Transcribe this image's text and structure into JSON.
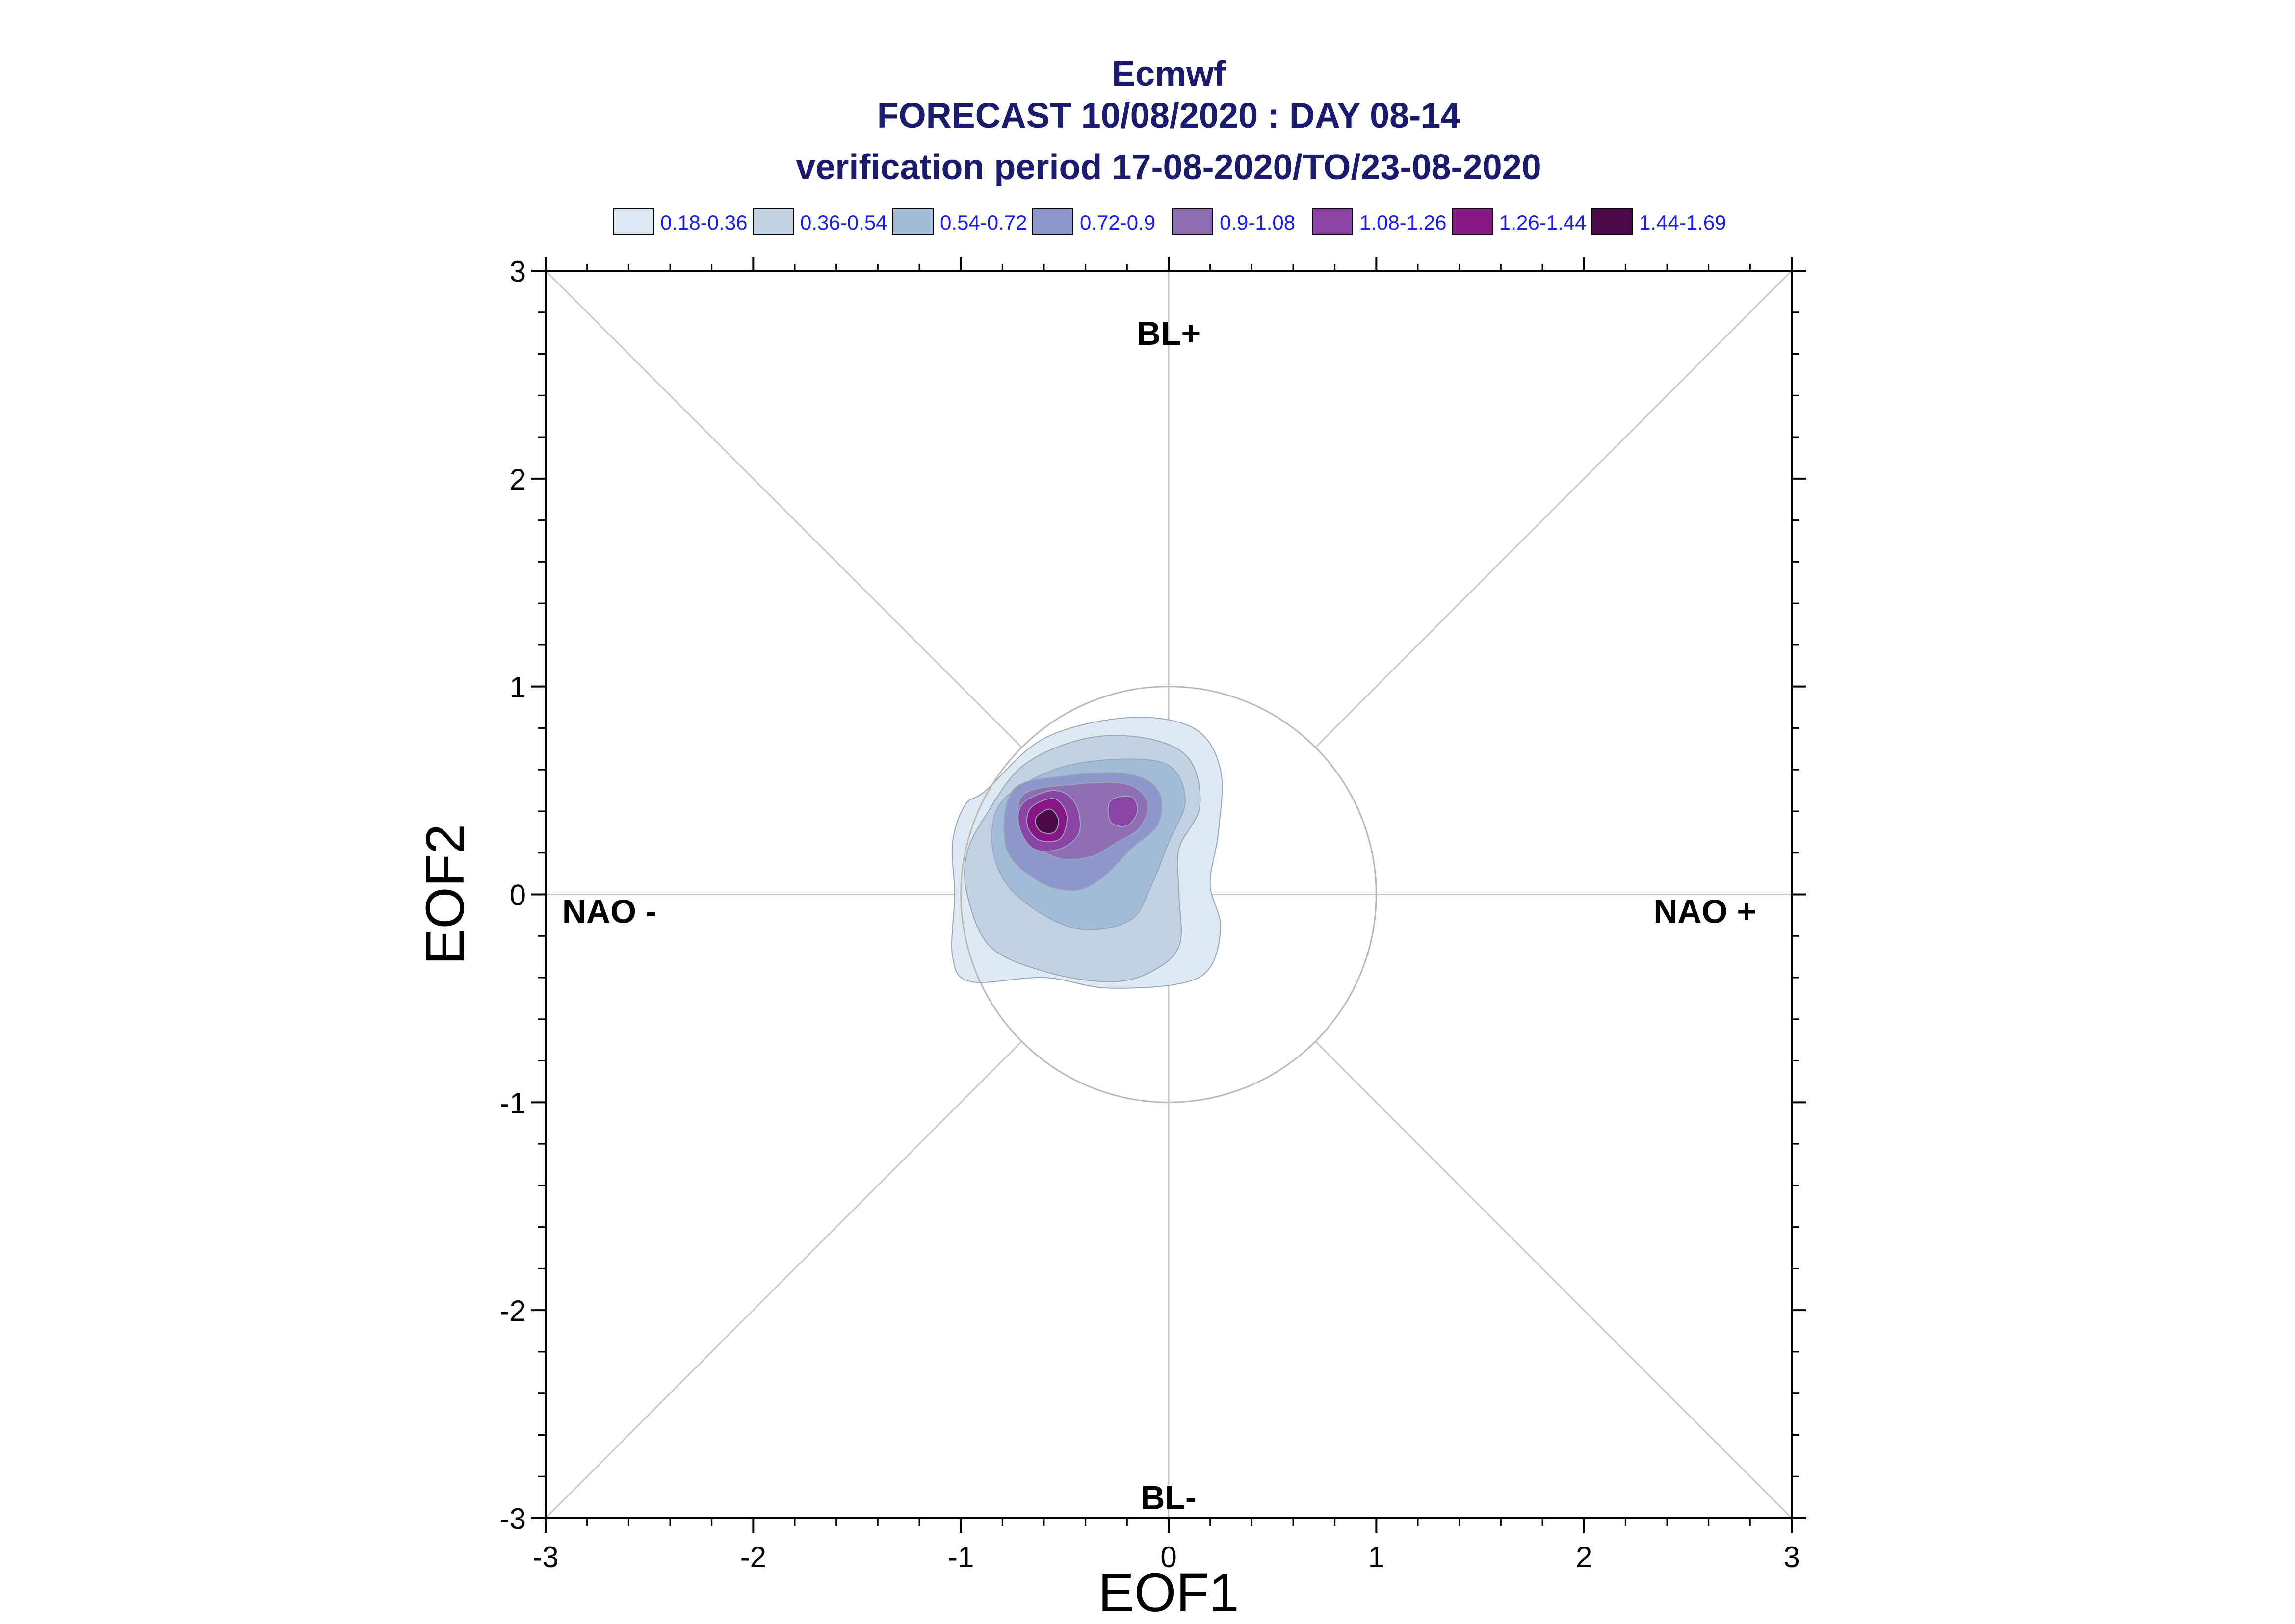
{
  "chart_data": {
    "type": "contour",
    "title_lines": [
      "Ecmwf",
      "FORECAST 10/08/2020 : DAY 08-14",
      "verification period 17-08-2020/TO/23-08-2020"
    ],
    "xlabel": "EOF1",
    "ylabel": "EOF2",
    "xlim": [
      -3,
      3
    ],
    "ylim": [
      -3,
      3
    ],
    "xticks": [
      "-3",
      "-2",
      "-1",
      "0",
      "1",
      "2",
      "3"
    ],
    "yticks": [
      "-3",
      "-2",
      "-1",
      "0",
      "1",
      "2",
      "3"
    ],
    "reference_circle_radius": 1,
    "diagonal_guides": true,
    "annotations": [
      {
        "text": "BL+",
        "x": 0,
        "y": 2.7
      },
      {
        "text": "BL-",
        "x": 0,
        "y": -2.9
      },
      {
        "text": "NAO -",
        "x": -2.55,
        "y": -0.08
      },
      {
        "text": "NAO +",
        "x": 2.55,
        "y": -0.08
      }
    ],
    "legend": [
      {
        "label": "0.18-0.36",
        "color": "#dfe9f1"
      },
      {
        "label": "0.36-0.54",
        "color": "#c0d2e3"
      },
      {
        "label": "0.54-0.72",
        "color": "#a3bcd9"
      },
      {
        "label": "0.72-0.9",
        "color": "#8c98c9"
      },
      {
        "label": "0.9-1.08",
        "color": "#8f6eb5"
      },
      {
        "label": "1.08-1.26",
        "color": "#8a44a6"
      },
      {
        "label": "1.26-1.44",
        "color": "#861685"
      },
      {
        "label": "1.44-1.69",
        "color": "#4a0a4a"
      }
    ],
    "density_peak": {
      "x": -0.58,
      "y": 0.35,
      "value_range": "1.44-1.69"
    },
    "secondary_peak": {
      "x": -0.22,
      "y": 0.4,
      "value_range": "1.08-1.26"
    },
    "contours": [
      {
        "level": "0.18-0.36",
        "points": [
          [
            -0.88,
            0.5
          ],
          [
            -0.6,
            0.75
          ],
          [
            -0.2,
            0.85
          ],
          [
            0.12,
            0.8
          ],
          [
            0.25,
            0.6
          ],
          [
            0.24,
            0.3
          ],
          [
            0.2,
            0.05
          ],
          [
            0.25,
            -0.15
          ],
          [
            0.2,
            -0.35
          ],
          [
            0.05,
            -0.43
          ],
          [
            -0.3,
            -0.45
          ],
          [
            -0.6,
            -0.4
          ],
          [
            -0.95,
            -0.42
          ],
          [
            -1.04,
            -0.3
          ],
          [
            -1.03,
            0.0
          ],
          [
            -1.04,
            0.25
          ],
          [
            -0.98,
            0.43
          ]
        ]
      },
      {
        "level": "0.36-0.54",
        "points": [
          [
            -0.88,
            0.38
          ],
          [
            -0.7,
            0.62
          ],
          [
            -0.4,
            0.75
          ],
          [
            -0.1,
            0.75
          ],
          [
            0.1,
            0.65
          ],
          [
            0.15,
            0.42
          ],
          [
            0.05,
            0.22
          ],
          [
            0.05,
            0.0
          ],
          [
            0.05,
            -0.25
          ],
          [
            -0.1,
            -0.38
          ],
          [
            -0.3,
            -0.42
          ],
          [
            -0.6,
            -0.37
          ],
          [
            -0.86,
            -0.25
          ],
          [
            -0.97,
            0.0
          ],
          [
            -0.97,
            0.2
          ]
        ]
      },
      {
        "level": "0.54-0.72",
        "points": [
          [
            -0.8,
            0.45
          ],
          [
            -0.55,
            0.6
          ],
          [
            -0.25,
            0.65
          ],
          [
            0.0,
            0.62
          ],
          [
            0.08,
            0.45
          ],
          [
            0.0,
            0.25
          ],
          [
            -0.08,
            0.05
          ],
          [
            -0.18,
            -0.12
          ],
          [
            -0.4,
            -0.17
          ],
          [
            -0.6,
            -0.1
          ],
          [
            -0.78,
            0.05
          ],
          [
            -0.85,
            0.25
          ]
        ]
      },
      {
        "level": "0.72-0.9",
        "points": [
          [
            -0.75,
            0.5
          ],
          [
            -0.5,
            0.57
          ],
          [
            -0.2,
            0.58
          ],
          [
            -0.05,
            0.5
          ],
          [
            -0.05,
            0.34
          ],
          [
            -0.18,
            0.22
          ],
          [
            -0.32,
            0.08
          ],
          [
            -0.45,
            0.02
          ],
          [
            -0.62,
            0.06
          ],
          [
            -0.78,
            0.22
          ]
        ]
      },
      {
        "level": "0.9-1.08",
        "points": [
          [
            -0.7,
            0.48
          ],
          [
            -0.45,
            0.53
          ],
          [
            -0.2,
            0.53
          ],
          [
            -0.1,
            0.44
          ],
          [
            -0.14,
            0.32
          ],
          [
            -0.25,
            0.25
          ],
          [
            -0.38,
            0.18
          ],
          [
            -0.55,
            0.18
          ],
          [
            -0.7,
            0.3
          ]
        ]
      },
      {
        "level": "1.08-1.26",
        "points": [
          [
            -0.7,
            0.44
          ],
          [
            -0.55,
            0.5
          ],
          [
            -0.45,
            0.44
          ],
          [
            -0.43,
            0.3
          ],
          [
            -0.52,
            0.22
          ],
          [
            -0.65,
            0.22
          ],
          [
            -0.72,
            0.33
          ]
        ]
      },
      {
        "level": "1.08-1.26",
        "points": [
          [
            -0.28,
            0.45
          ],
          [
            -0.18,
            0.47
          ],
          [
            -0.15,
            0.4
          ],
          [
            -0.2,
            0.33
          ],
          [
            -0.28,
            0.35
          ]
        ]
      },
      {
        "level": "1.26-1.44",
        "points": [
          [
            -0.66,
            0.42
          ],
          [
            -0.55,
            0.46
          ],
          [
            -0.49,
            0.38
          ],
          [
            -0.52,
            0.27
          ],
          [
            -0.62,
            0.26
          ],
          [
            -0.68,
            0.33
          ]
        ]
      },
      {
        "level": "1.44-1.69",
        "points": [
          [
            -0.63,
            0.38
          ],
          [
            -0.57,
            0.41
          ],
          [
            -0.53,
            0.36
          ],
          [
            -0.55,
            0.3
          ],
          [
            -0.61,
            0.3
          ],
          [
            -0.64,
            0.34
          ]
        ]
      }
    ]
  }
}
